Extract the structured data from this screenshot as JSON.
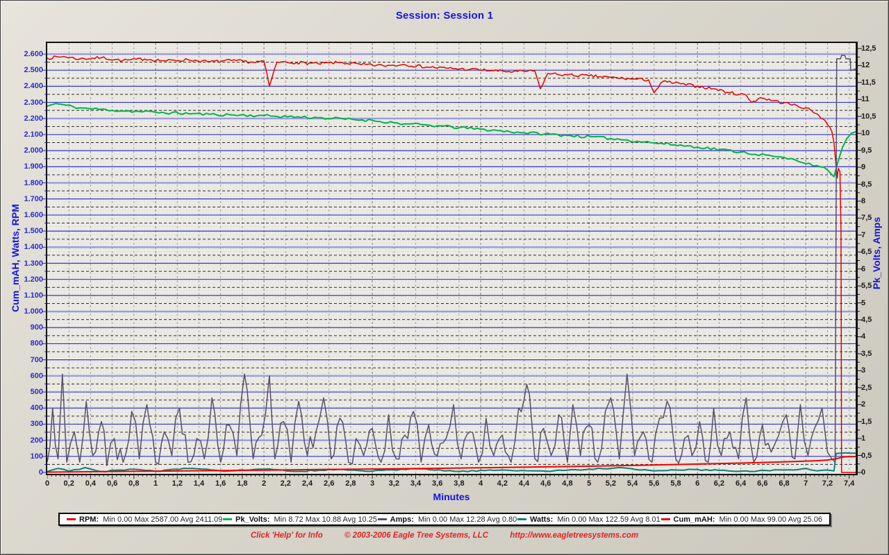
{
  "chart_data": {
    "type": "line",
    "title": "Session: Session 1",
    "xlabel": "Minutes",
    "ylabel_left": "Cum_mAH, Watts, RPM",
    "ylabel_right": "Pk_Volts, Amps",
    "x_axis": {
      "min": 0,
      "max": 7.46,
      "tick_step": 0.2,
      "tick_labels": [
        "0",
        "0,2",
        "0,4",
        "0,6",
        "0,8",
        "1",
        "1,2",
        "1,4",
        "1,6",
        "1,8",
        "2",
        "2,2",
        "2,4",
        "2,6",
        "2,8",
        "3",
        "3,2",
        "3,4",
        "3,6",
        "3,8",
        "4",
        "4,2",
        "4,4",
        "4,6",
        "4,8",
        "5",
        "5,2",
        "5,4",
        "5,6",
        "5,8",
        "6",
        "6,2",
        "6,4",
        "6,6",
        "6,8",
        "7",
        "7,2",
        "7,4"
      ]
    },
    "left_axis": {
      "min": 0,
      "max": 2600,
      "tick_step": 100,
      "tick_labels": [
        "0",
        "100",
        "200",
        "300",
        "400",
        "500",
        "600",
        "700",
        "800",
        "900",
        "1.000",
        "1.100",
        "1.200",
        "1.300",
        "1.400",
        "1.500",
        "1.600",
        "1.700",
        "1.800",
        "1.900",
        "2.000",
        "2.100",
        "2.200",
        "2.300",
        "2.400",
        "2.500",
        "2.600"
      ]
    },
    "right_axis": {
      "min": 0,
      "max": 12.5,
      "tick_step": 0.5,
      "tick_labels": [
        "0",
        "0,5",
        "1",
        "1,5",
        "2",
        "2,5",
        "3",
        "3,5",
        "4",
        "4,5",
        "5",
        "5,5",
        "6",
        "6,5",
        "7",
        "7,5",
        "8",
        "8,5",
        "9",
        "9,5",
        "10",
        "10,5",
        "11",
        "11,5",
        "12",
        "12,5"
      ]
    },
    "grid": {
      "h_solid_color": "#3434cc",
      "h_light_color": "#9a9ae2",
      "h_dash_color": "#2b2b2b",
      "v_dash_color": "#a2a2a2",
      "v_dash_dark": "#8a8a8a",
      "h_light_values": [
        200,
        600,
        1000,
        1400,
        1800,
        2200,
        2600
      ]
    },
    "series": [
      {
        "name": "RPM",
        "axis": "left",
        "color": "#e60000",
        "width": 1.5,
        "jitter": 9,
        "jitter_dx": 0.02,
        "jitter_vmin": 150,
        "seed": 7,
        "points": [
          [
            0,
            2575
          ],
          [
            0.15,
            2585
          ],
          [
            0.3,
            2570
          ],
          [
            0.5,
            2578
          ],
          [
            0.7,
            2560
          ],
          [
            0.9,
            2570
          ],
          [
            1.1,
            2558
          ],
          [
            1.3,
            2565
          ],
          [
            1.5,
            2552
          ],
          [
            1.7,
            2560
          ],
          [
            1.9,
            2550
          ],
          [
            2.0,
            2555
          ],
          [
            2.05,
            2400
          ],
          [
            2.12,
            2550
          ],
          [
            2.3,
            2548
          ],
          [
            2.5,
            2540
          ],
          [
            2.7,
            2548
          ],
          [
            2.9,
            2535
          ],
          [
            3.1,
            2528
          ],
          [
            3.3,
            2535
          ],
          [
            3.5,
            2520
          ],
          [
            3.7,
            2512
          ],
          [
            3.9,
            2505
          ],
          [
            4.1,
            2498
          ],
          [
            4.3,
            2490
          ],
          [
            4.5,
            2495
          ],
          [
            4.55,
            2385
          ],
          [
            4.62,
            2480
          ],
          [
            4.8,
            2470
          ],
          [
            5.0,
            2465
          ],
          [
            5.2,
            2455
          ],
          [
            5.4,
            2445
          ],
          [
            5.55,
            2440
          ],
          [
            5.6,
            2360
          ],
          [
            5.68,
            2430
          ],
          [
            5.85,
            2415
          ],
          [
            6.0,
            2400
          ],
          [
            6.15,
            2385
          ],
          [
            6.3,
            2360
          ],
          [
            6.45,
            2345
          ],
          [
            6.5,
            2300
          ],
          [
            6.58,
            2330
          ],
          [
            6.7,
            2310
          ],
          [
            6.85,
            2290
          ],
          [
            7.0,
            2265
          ],
          [
            7.1,
            2230
          ],
          [
            7.18,
            2185
          ],
          [
            7.24,
            2120
          ],
          [
            7.26,
            2050
          ],
          [
            7.28,
            1900
          ],
          [
            7.29,
            1830
          ],
          [
            7.3,
            1890
          ],
          [
            7.315,
            1870
          ],
          [
            7.325,
            1500
          ],
          [
            7.33,
            0
          ],
          [
            7.46,
            0
          ]
        ]
      },
      {
        "name": "Pk_Volts",
        "axis": "right",
        "color": "#00b44c",
        "width": 2,
        "jitter": 0.04,
        "jitter_dx": 0.03,
        "seed": 11,
        "points": [
          [
            0,
            10.8
          ],
          [
            0.08,
            10.88
          ],
          [
            0.3,
            10.75
          ],
          [
            0.6,
            10.68
          ],
          [
            1.0,
            10.62
          ],
          [
            1.5,
            10.56
          ],
          [
            2.0,
            10.52
          ],
          [
            2.5,
            10.46
          ],
          [
            3.0,
            10.38
          ],
          [
            3.3,
            10.28
          ],
          [
            3.6,
            10.22
          ],
          [
            4.0,
            10.12
          ],
          [
            4.4,
            10.02
          ],
          [
            4.8,
            9.94
          ],
          [
            5.2,
            9.85
          ],
          [
            5.6,
            9.72
          ],
          [
            6.0,
            9.6
          ],
          [
            6.4,
            9.45
          ],
          [
            6.7,
            9.32
          ],
          [
            6.9,
            9.22
          ],
          [
            7.1,
            9.05
          ],
          [
            7.2,
            8.92
          ],
          [
            7.26,
            8.72
          ],
          [
            7.3,
            9.2
          ],
          [
            7.34,
            9.6
          ],
          [
            7.38,
            9.85
          ],
          [
            7.42,
            10.0
          ],
          [
            7.46,
            10.05
          ]
        ]
      },
      {
        "name": "Amps",
        "axis": "right",
        "color": "#584e66",
        "width": 1.5,
        "jitter": 0.4,
        "jitter_dx": 0.025,
        "jitter_vmax": 4,
        "seed": 23,
        "points": [
          [
            0,
            0.3
          ],
          [
            0.05,
            1.9
          ],
          [
            0.1,
            0.4
          ],
          [
            0.14,
            2.9
          ],
          [
            0.18,
            0.3
          ],
          [
            0.25,
            1.2
          ],
          [
            0.3,
            0.3
          ],
          [
            0.36,
            2.1
          ],
          [
            0.42,
            0.5
          ],
          [
            0.5,
            1.5
          ],
          [
            0.55,
            0.2
          ],
          [
            0.62,
            1.0
          ],
          [
            0.7,
            0.3
          ],
          [
            0.78,
            1.8
          ],
          [
            0.85,
            0.4
          ],
          [
            0.92,
            2.0
          ],
          [
            1.0,
            0.3
          ],
          [
            1.08,
            1.2
          ],
          [
            1.15,
            0.5
          ],
          [
            1.22,
            1.9
          ],
          [
            1.3,
            0.3
          ],
          [
            1.38,
            1.0
          ],
          [
            1.45,
            0.4
          ],
          [
            1.52,
            2.2
          ],
          [
            1.6,
            0.3
          ],
          [
            1.68,
            1.4
          ],
          [
            1.75,
            0.5
          ],
          [
            1.82,
            2.9
          ],
          [
            1.9,
            0.4
          ],
          [
            1.98,
            1.1
          ],
          [
            2.05,
            2.85
          ],
          [
            2.1,
            0.4
          ],
          [
            2.18,
            1.5
          ],
          [
            2.25,
            0.3
          ],
          [
            2.32,
            2.1
          ],
          [
            2.4,
            0.5
          ],
          [
            2.48,
            1.2
          ],
          [
            2.55,
            2.2
          ],
          [
            2.62,
            0.4
          ],
          [
            2.7,
            1.6
          ],
          [
            2.78,
            0.3
          ],
          [
            2.85,
            1.0
          ],
          [
            2.92,
            0.5
          ],
          [
            3.0,
            1.3
          ],
          [
            3.08,
            0.3
          ],
          [
            3.15,
            1.7
          ],
          [
            3.22,
            0.4
          ],
          [
            3.3,
            1.1
          ],
          [
            3.38,
            1.8
          ],
          [
            3.45,
            0.3
          ],
          [
            3.52,
            1.4
          ],
          [
            3.6,
            0.5
          ],
          [
            3.68,
            1.0
          ],
          [
            3.75,
            2.0
          ],
          [
            3.82,
            0.4
          ],
          [
            3.9,
            1.2
          ],
          [
            3.98,
            0.3
          ],
          [
            4.05,
            1.6
          ],
          [
            4.12,
            0.5
          ],
          [
            4.2,
            1.1
          ],
          [
            4.28,
            0.3
          ],
          [
            4.35,
            1.9
          ],
          [
            4.45,
            2.3
          ],
          [
            4.5,
            0.4
          ],
          [
            4.58,
            1.3
          ],
          [
            4.65,
            0.5
          ],
          [
            4.72,
            1.7
          ],
          [
            4.8,
            0.3
          ],
          [
            4.85,
            2.0
          ],
          [
            4.92,
            0.5
          ],
          [
            5.0,
            1.4
          ],
          [
            5.08,
            0.3
          ],
          [
            5.15,
            1.8
          ],
          [
            5.2,
            2.2
          ],
          [
            5.28,
            0.4
          ],
          [
            5.35,
            2.9
          ],
          [
            5.42,
            0.5
          ],
          [
            5.5,
            1.2
          ],
          [
            5.58,
            0.3
          ],
          [
            5.65,
            1.6
          ],
          [
            5.72,
            2.1
          ],
          [
            5.8,
            0.4
          ],
          [
            5.88,
            1.0
          ],
          [
            5.95,
            0.5
          ],
          [
            6.02,
            1.5
          ],
          [
            6.1,
            0.3
          ],
          [
            6.15,
            1.9
          ],
          [
            6.22,
            0.5
          ],
          [
            6.3,
            1.2
          ],
          [
            6.38,
            0.4
          ],
          [
            6.45,
            2.2
          ],
          [
            6.52,
            0.3
          ],
          [
            6.6,
            1.4
          ],
          [
            6.68,
            0.6
          ],
          [
            6.75,
            1.1
          ],
          [
            6.82,
            1.7
          ],
          [
            6.9,
            0.4
          ],
          [
            6.95,
            2.0
          ],
          [
            7.02,
            0.5
          ],
          [
            7.08,
            1.3
          ],
          [
            7.15,
            1.9
          ],
          [
            7.2,
            0.6
          ],
          [
            7.24,
            0.4
          ],
          [
            7.27,
            0.3
          ],
          [
            7.285,
            12.2
          ],
          [
            7.32,
            12.2
          ],
          [
            7.33,
            12.3
          ],
          [
            7.36,
            12.3
          ],
          [
            7.37,
            12.2
          ],
          [
            7.41,
            12.2
          ],
          [
            7.415,
            11.85
          ],
          [
            7.46,
            11.9
          ]
        ]
      },
      {
        "name": "Watts",
        "axis": "left",
        "color": "#0d7f78",
        "width": 2,
        "jitter": 4,
        "jitter_dx": 0.04,
        "jitter_vmax": 50,
        "seed": 31,
        "points": [
          [
            0,
            5
          ],
          [
            0.1,
            25
          ],
          [
            0.2,
            8
          ],
          [
            0.35,
            30
          ],
          [
            0.5,
            5
          ],
          [
            0.8,
            20
          ],
          [
            1.0,
            8
          ],
          [
            1.3,
            25
          ],
          [
            1.6,
            10
          ],
          [
            2.0,
            20
          ],
          [
            2.3,
            6
          ],
          [
            2.6,
            18
          ],
          [
            3.0,
            8
          ],
          [
            3.4,
            22
          ],
          [
            3.8,
            6
          ],
          [
            4.2,
            15
          ],
          [
            4.6,
            8
          ],
          [
            5.0,
            20
          ],
          [
            5.3,
            30
          ],
          [
            5.6,
            10
          ],
          [
            6.0,
            18
          ],
          [
            6.4,
            8
          ],
          [
            6.8,
            15
          ],
          [
            7.0,
            25
          ],
          [
            7.1,
            10
          ],
          [
            7.2,
            15
          ],
          [
            7.26,
            10
          ],
          [
            7.28,
            118
          ],
          [
            7.32,
            120
          ],
          [
            7.36,
            122
          ],
          [
            7.42,
            120
          ],
          [
            7.46,
            120
          ]
        ]
      },
      {
        "name": "Cum_mAH",
        "axis": "left",
        "color": "#f20000",
        "width": 2,
        "points": [
          [
            0,
            2
          ],
          [
            0.5,
            5
          ],
          [
            1,
            8
          ],
          [
            1.5,
            11
          ],
          [
            2,
            14
          ],
          [
            2.5,
            18
          ],
          [
            3,
            21
          ],
          [
            3.5,
            25
          ],
          [
            4,
            29
          ],
          [
            4.5,
            34
          ],
          [
            5,
            39
          ],
          [
            5.5,
            45
          ],
          [
            6,
            52
          ],
          [
            6.5,
            60
          ],
          [
            6.9,
            68
          ],
          [
            7.1,
            73
          ],
          [
            7.2,
            77
          ],
          [
            7.28,
            85
          ],
          [
            7.32,
            92
          ],
          [
            7.36,
            97
          ],
          [
            7.46,
            99
          ]
        ]
      }
    ],
    "legend": [
      {
        "name": "RPM",
        "stats": "Min 0.00 Max 2587.00 Avg 2411.09",
        "color": "#e60000"
      },
      {
        "name": "Pk_Volts",
        "stats": "Min 8.72 Max 10.88 Avg 10.25",
        "color": "#00b44c"
      },
      {
        "name": "Amps",
        "stats": "Min 0.00 Max 12.28 Avg 0.80",
        "color": "#584e66"
      },
      {
        "name": "Watts",
        "stats": "Min 0.00 Max 122.59 Avg 8.01",
        "color": "#0d7f78"
      },
      {
        "name": "Cum_mAH",
        "stats": "Min 0.00 Max 99.00 Avg 25.06",
        "color": "#f20000"
      }
    ],
    "legend_position": "bottom"
  },
  "footer": {
    "help": "Click 'Help' for Info",
    "copyright": "© 2003-2006 Eagle Tree Systems, LLC",
    "url": "http://www.eagletreesystems.com"
  }
}
